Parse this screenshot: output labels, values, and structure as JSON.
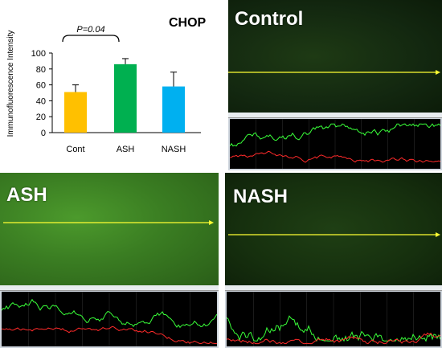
{
  "chart_data": {
    "type": "bar",
    "title": "CHOP",
    "ylabel": "Immunofluorescence Intensity",
    "xlabel": "",
    "categories": [
      "Cont",
      "ASH",
      "NASH"
    ],
    "values": [
      51,
      86,
      58
    ],
    "errors": [
      9,
      7,
      18
    ],
    "colors": [
      "#FFC000",
      "#00B050",
      "#00B0F0"
    ],
    "ylim": [
      0,
      100
    ],
    "yticks": [
      "0",
      "20",
      "40",
      "60",
      "80",
      "100"
    ],
    "grid": false,
    "annotation": "P=0.04"
  },
  "panels": {
    "control": {
      "label": "Control"
    },
    "ash": {
      "label": "ASH"
    },
    "nash": {
      "label": "NASH"
    }
  },
  "colors": {
    "tissue_green": "#2f6b1a",
    "profile_bg": "#000000",
    "profile_green": "#39ff39",
    "profile_red": "#ff2a2a",
    "arrow_yellow": "#ffff33"
  }
}
